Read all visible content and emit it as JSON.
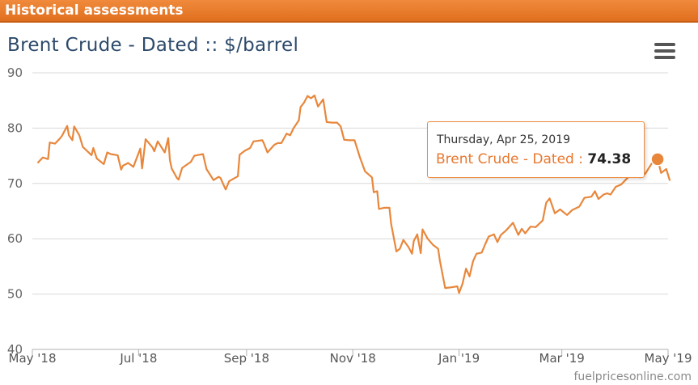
{
  "header": {
    "title": "Historical assessments"
  },
  "chart_title": "Brent Crude - Dated :: $/barrel",
  "menu": {
    "icon": "hamburger-menu-icon"
  },
  "watermark": "fuelpricesonline.com",
  "tooltip": {
    "date": "Thursday, Apr 25, 2019",
    "series": "Brent Crude - Dated",
    "separator": ":",
    "value": "74.38"
  },
  "colors": {
    "header": "#e8782f",
    "line": "#e8873c",
    "title": "#2d4a6b",
    "grid": "#d8d8d8"
  },
  "chart_data": {
    "type": "line",
    "title": "Brent Crude - Dated :: $/barrel",
    "ylim": [
      40,
      90
    ],
    "yticks": [
      40,
      50,
      60,
      70,
      80,
      90
    ],
    "xlim": [
      "2018-05-01",
      "2019-05-01"
    ],
    "xticks": [
      {
        "date": "2018-05-01",
        "label": "May '18"
      },
      {
        "date": "2018-07-01",
        "label": "Jul '18"
      },
      {
        "date": "2018-09-01",
        "label": "Sep '18"
      },
      {
        "date": "2018-11-01",
        "label": "Nov '18"
      },
      {
        "date": "2019-01-01",
        "label": "Jan '19"
      },
      {
        "date": "2019-03-01",
        "label": "Mar '19"
      },
      {
        "date": "2019-05-01",
        "label": "May '19"
      }
    ],
    "grid": true,
    "series": [
      {
        "color": "#e8873c",
        "points": [
          [
            "2018-05-04",
            73.7
          ],
          [
            "2018-05-07",
            74.7
          ],
          [
            "2018-05-10",
            74.4
          ],
          [
            "2018-05-11",
            77.4
          ],
          [
            "2018-05-14",
            77.2
          ],
          [
            "2018-05-17",
            78.2
          ],
          [
            "2018-05-18",
            78.6
          ],
          [
            "2018-05-21",
            80.4
          ],
          [
            "2018-05-22",
            78.7
          ],
          [
            "2018-05-24",
            77.8
          ],
          [
            "2018-05-25",
            80.3
          ],
          [
            "2018-05-28",
            78.7
          ],
          [
            "2018-05-30",
            76.6
          ],
          [
            "2018-06-01",
            76.0
          ],
          [
            "2018-06-04",
            75.1
          ],
          [
            "2018-06-05",
            76.4
          ],
          [
            "2018-06-07",
            74.5
          ],
          [
            "2018-06-11",
            73.5
          ],
          [
            "2018-06-13",
            75.6
          ],
          [
            "2018-06-15",
            75.3
          ],
          [
            "2018-06-19",
            75.1
          ],
          [
            "2018-06-21",
            72.5
          ],
          [
            "2018-06-22",
            73.2
          ],
          [
            "2018-06-25",
            73.7
          ],
          [
            "2018-06-28",
            73.0
          ],
          [
            "2018-07-02",
            76.3
          ],
          [
            "2018-07-03",
            72.7
          ],
          [
            "2018-07-05",
            78.0
          ],
          [
            "2018-07-09",
            76.5
          ],
          [
            "2018-07-10",
            75.8
          ],
          [
            "2018-07-12",
            77.6
          ],
          [
            "2018-07-16",
            75.6
          ],
          [
            "2018-07-18",
            78.2
          ],
          [
            "2018-07-19",
            74.2
          ],
          [
            "2018-07-20",
            72.7
          ],
          [
            "2018-07-23",
            71.0
          ],
          [
            "2018-07-24",
            70.7
          ],
          [
            "2018-07-26",
            72.8
          ],
          [
            "2018-07-31",
            73.9
          ],
          [
            "2018-08-02",
            75.0
          ],
          [
            "2018-08-07",
            75.3
          ],
          [
            "2018-08-09",
            72.6
          ],
          [
            "2018-08-13",
            70.6
          ],
          [
            "2018-08-16",
            71.2
          ],
          [
            "2018-08-17",
            71.0
          ],
          [
            "2018-08-20",
            68.9
          ],
          [
            "2018-08-22",
            70.4
          ],
          [
            "2018-08-27",
            71.3
          ],
          [
            "2018-08-28",
            75.2
          ],
          [
            "2018-08-31",
            75.9
          ],
          [
            "2018-09-03",
            76.4
          ],
          [
            "2018-09-05",
            77.6
          ],
          [
            "2018-09-10",
            77.8
          ],
          [
            "2018-09-11",
            77.2
          ],
          [
            "2018-09-13",
            75.6
          ],
          [
            "2018-09-17",
            77.0
          ],
          [
            "2018-09-19",
            77.3
          ],
          [
            "2018-09-21",
            77.3
          ],
          [
            "2018-09-24",
            79.0
          ],
          [
            "2018-09-26",
            78.7
          ],
          [
            "2018-09-28",
            80.0
          ],
          [
            "2018-10-01",
            81.4
          ],
          [
            "2018-10-02",
            83.8
          ],
          [
            "2018-10-04",
            84.6
          ],
          [
            "2018-10-06",
            85.8
          ],
          [
            "2018-10-08",
            85.4
          ],
          [
            "2018-10-10",
            85.9
          ],
          [
            "2018-10-12",
            83.9
          ],
          [
            "2018-10-15",
            85.2
          ],
          [
            "2018-10-17",
            81.1
          ],
          [
            "2018-10-20",
            81.0
          ],
          [
            "2018-10-23",
            81.0
          ],
          [
            "2018-10-25",
            80.3
          ],
          [
            "2018-10-27",
            77.9
          ],
          [
            "2018-10-30",
            77.8
          ],
          [
            "2018-11-02",
            77.8
          ],
          [
            "2018-11-05",
            74.8
          ],
          [
            "2018-11-08",
            72.2
          ],
          [
            "2018-11-12",
            71.1
          ],
          [
            "2018-11-13",
            68.4
          ],
          [
            "2018-11-15",
            68.6
          ],
          [
            "2018-11-16",
            65.4
          ],
          [
            "2018-11-19",
            65.6
          ],
          [
            "2018-11-22",
            65.6
          ],
          [
            "2018-11-23",
            62.7
          ],
          [
            "2018-11-26",
            57.7
          ],
          [
            "2018-11-28",
            58.2
          ],
          [
            "2018-11-30",
            59.8
          ],
          [
            "2018-12-03",
            58.5
          ],
          [
            "2018-12-05",
            57.3
          ],
          [
            "2018-12-06",
            59.6
          ],
          [
            "2018-12-08",
            60.8
          ],
          [
            "2018-12-10",
            57.4
          ],
          [
            "2018-12-11",
            61.7
          ],
          [
            "2018-12-14",
            60.0
          ],
          [
            "2018-12-17",
            58.9
          ],
          [
            "2018-12-20",
            58.2
          ],
          [
            "2018-12-21",
            56.0
          ],
          [
            "2018-12-24",
            51.1
          ],
          [
            "2018-12-27",
            51.2
          ],
          [
            "2018-12-31",
            51.4
          ],
          [
            "2019-01-01",
            50.2
          ],
          [
            "2019-01-03",
            51.9
          ],
          [
            "2019-01-05",
            54.6
          ],
          [
            "2019-01-07",
            53.2
          ],
          [
            "2019-01-09",
            55.9
          ],
          [
            "2019-01-11",
            57.3
          ],
          [
            "2019-01-14",
            57.5
          ],
          [
            "2019-01-16",
            59.0
          ],
          [
            "2019-01-18",
            60.4
          ],
          [
            "2019-01-21",
            60.8
          ],
          [
            "2019-01-23",
            59.4
          ],
          [
            "2019-01-25",
            60.7
          ],
          [
            "2019-01-28",
            61.5
          ],
          [
            "2019-02-01",
            62.9
          ],
          [
            "2019-02-04",
            60.7
          ],
          [
            "2019-02-06",
            61.8
          ],
          [
            "2019-02-08",
            61.0
          ],
          [
            "2019-02-11",
            62.2
          ],
          [
            "2019-02-14",
            62.1
          ],
          [
            "2019-02-18",
            63.3
          ],
          [
            "2019-02-20",
            66.5
          ],
          [
            "2019-02-22",
            67.3
          ],
          [
            "2019-02-25",
            64.6
          ],
          [
            "2019-02-28",
            65.3
          ],
          [
            "2019-03-04",
            64.3
          ],
          [
            "2019-03-07",
            65.2
          ],
          [
            "2019-03-11",
            65.8
          ],
          [
            "2019-03-14",
            67.4
          ],
          [
            "2019-03-18",
            67.6
          ],
          [
            "2019-03-20",
            68.6
          ],
          [
            "2019-03-22",
            67.2
          ],
          [
            "2019-03-25",
            68.0
          ],
          [
            "2019-03-27",
            68.2
          ],
          [
            "2019-03-29",
            68.0
          ],
          [
            "2019-04-01",
            69.4
          ],
          [
            "2019-04-04",
            69.8
          ],
          [
            "2019-04-08",
            71.1
          ],
          [
            "2019-04-11",
            71.4
          ],
          [
            "2019-04-15",
            71.1
          ],
          [
            "2019-04-18",
            71.8
          ],
          [
            "2019-04-22",
            73.8
          ],
          [
            "2019-04-25",
            74.38
          ],
          [
            "2019-04-27",
            71.9
          ],
          [
            "2019-04-30",
            72.6
          ],
          [
            "2019-05-02",
            70.5
          ]
        ]
      }
    ],
    "highlight": {
      "date": "2019-04-25",
      "value": 74.38
    }
  }
}
